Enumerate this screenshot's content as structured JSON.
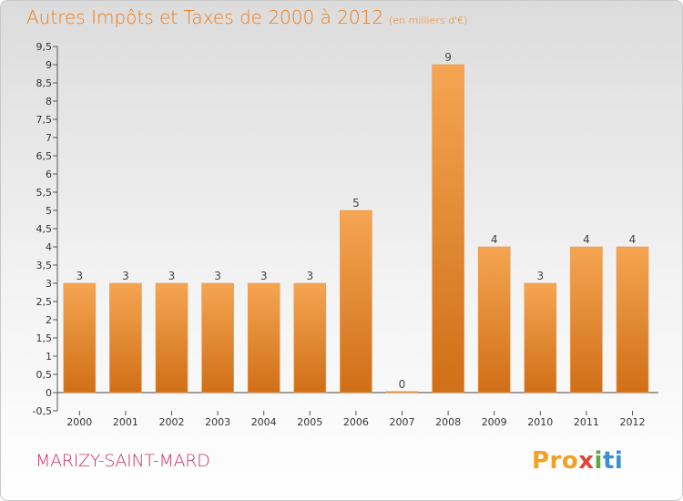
{
  "header": {
    "title": "Autres Impôts et Taxes de 2000 à 2012",
    "subtitle": "(en milliers d'€)"
  },
  "footer": {
    "commune": "MARIZY-SAINT-MARD",
    "logo": "Proxiti"
  },
  "colors": {
    "bar_top": "#f5a552",
    "bar_bottom": "#d06f17",
    "title": "#f07a16",
    "commune": "#c8336b"
  },
  "chart_data": {
    "type": "bar",
    "title": "Autres Impôts et Taxes de 2000 à 2012",
    "subtitle": "(en milliers d'€)",
    "categories": [
      "2000",
      "2001",
      "2002",
      "2003",
      "2004",
      "2005",
      "2006",
      "2007",
      "2008",
      "2009",
      "2010",
      "2011",
      "2012"
    ],
    "values": [
      3,
      3,
      3,
      3,
      3,
      3,
      5,
      0,
      9,
      4,
      3,
      4,
      4
    ],
    "data_labels": [
      "3",
      "3",
      "3",
      "3",
      "3",
      "3",
      "5",
      "0",
      "9",
      "4",
      "3",
      "4",
      "4"
    ],
    "ylim": [
      -0.5,
      9.5
    ],
    "yticks": [
      -0.5,
      0,
      0.5,
      1,
      1.5,
      2,
      2.5,
      3,
      3.5,
      4,
      4.5,
      5,
      5.5,
      6,
      6.5,
      7,
      7.5,
      8,
      8.5,
      9,
      9.5
    ],
    "ytick_labels": [
      "-0,5",
      "0",
      "0,5",
      "1",
      "1,5",
      "2",
      "2,5",
      "3",
      "3,5",
      "4",
      "4,5",
      "5",
      "5,5",
      "6",
      "6,5",
      "7",
      "7,5",
      "8",
      "8,5",
      "9",
      "9,5"
    ],
    "grid": false,
    "xlabel": "",
    "ylabel": ""
  }
}
